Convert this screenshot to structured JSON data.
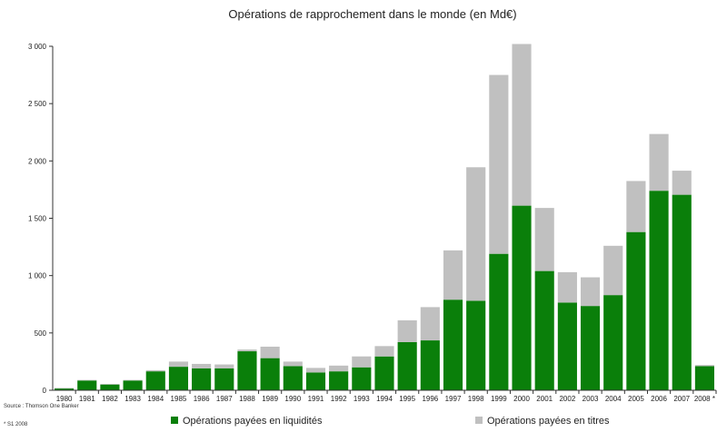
{
  "chart_data": {
    "type": "bar",
    "stacked": true,
    "title": "Opérations de rapprochement dans le monde (en Md€)",
    "xlabel": "",
    "ylabel": "",
    "ylim": [
      0,
      3000
    ],
    "yticks": [
      0,
      500,
      1000,
      1500,
      2000,
      2500,
      3000
    ],
    "ytick_labels": [
      "0",
      "500",
      "1 000",
      "1 500",
      "2 000",
      "2 500",
      "3 000"
    ],
    "grid": false,
    "legend_position": "bottom",
    "categories": [
      "1980",
      "1981",
      "1982",
      "1983",
      "1984",
      "1985",
      "1986",
      "1987",
      "1988",
      "1989",
      "1990",
      "1991",
      "1992",
      "1993",
      "1994",
      "1995",
      "1996",
      "1997",
      "1998",
      "1999",
      "2000",
      "2001",
      "2002",
      "2003",
      "2004",
      "2005",
      "2006",
      "2007",
      "2008 *"
    ],
    "series": [
      {
        "name": "Opérations payées en liquidités",
        "color": "#0a7f0a",
        "values": [
          15,
          85,
          50,
          85,
          165,
          205,
          190,
          190,
          340,
          280,
          210,
          155,
          165,
          200,
          295,
          420,
          435,
          790,
          780,
          1190,
          1610,
          1040,
          765,
          735,
          830,
          1380,
          1740,
          1705,
          210
        ]
      },
      {
        "name": "Opérations payées en titres",
        "color": "#c0c0c0",
        "values": [
          5,
          5,
          5,
          5,
          10,
          45,
          40,
          35,
          15,
          100,
          40,
          40,
          50,
          95,
          90,
          190,
          290,
          430,
          1165,
          1560,
          1410,
          550,
          265,
          250,
          430,
          445,
          495,
          210,
          10
        ]
      }
    ],
    "source_note": "Source : Thomson One Banker",
    "footnote": "* S1 2008"
  }
}
